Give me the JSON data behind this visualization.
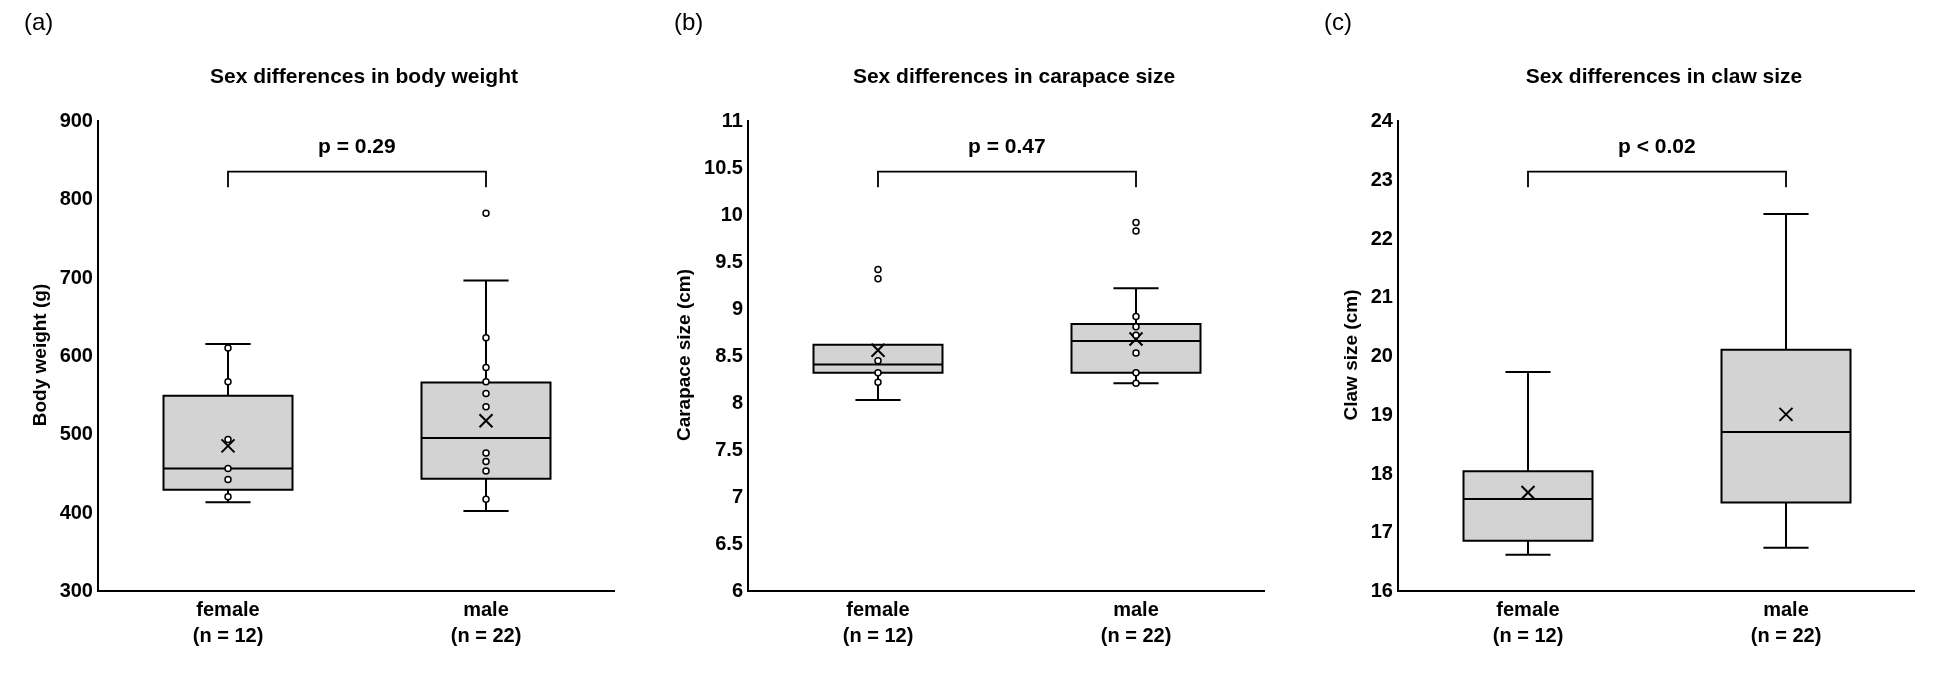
{
  "chart_data": [
    {
      "type": "box",
      "title": "Sex differences in body weight",
      "ylabel": "Body weight (g)",
      "categories": [
        "female\n(n = 12)",
        "male\n(n = 22)"
      ],
      "ylim": [
        300,
        900
      ],
      "yticks": [
        300,
        400,
        500,
        600,
        700,
        800,
        900
      ],
      "grid": false,
      "annotations": [
        "(a)",
        "p = 0.29"
      ],
      "series": [
        {
          "type": "box",
          "color": "#d3d3d3",
          "boxes": [
            {
              "low": 412,
              "q1": 428,
              "median": 455,
              "q3": 548,
              "high": 614,
              "mean": 484
            },
            {
              "low": 401,
              "q1": 442,
              "median": 494,
              "q3": 565,
              "high": 695,
              "mean": 516,
              "outliers": [
                781
              ]
            }
          ]
        },
        {
          "type": "scatter",
          "color": "#000000",
          "marker": "circle",
          "x": [
            "female\n(n = 12)",
            "female\n(n = 12)",
            "female\n(n = 12)",
            "female\n(n = 12)",
            "female\n(n = 12)",
            "female\n(n = 12)",
            "male\n(n = 22)",
            "male\n(n = 22)",
            "male\n(n = 22)",
            "male\n(n = 22)",
            "male\n(n = 22)",
            "male\n(n = 22)",
            "male\n(n = 22)",
            "male\n(n = 22)",
            "male\n(n = 22)"
          ],
          "values": [
            609,
            566,
            492,
            455,
            441,
            419,
            622,
            584,
            566,
            551,
            534,
            475,
            464,
            452,
            416
          ]
        }
      ]
    },
    {
      "type": "box",
      "title": "Sex differences in carapace size",
      "ylabel": "Carapace size (cm)",
      "categories": [
        "female\n(n = 12)",
        "male\n(n = 22)"
      ],
      "ylim": [
        6,
        11
      ],
      "yticks": [
        6,
        6.5,
        7,
        7.5,
        8,
        8.5,
        9,
        9.5,
        10,
        10.5,
        11
      ],
      "grid": false,
      "annotations": [
        "(b)",
        "p = 0.47"
      ],
      "series": [
        {
          "type": "box",
          "color": "#d3d3d3",
          "boxes": [
            {
              "low": 8.02,
              "q1": 8.31,
              "median": 8.4,
              "q3": 8.61,
              "high": 8.61,
              "mean": 8.55,
              "outliers": [
                9.31,
                9.41
              ]
            },
            {
              "low": 8.2,
              "q1": 8.31,
              "median": 8.65,
              "q3": 8.83,
              "high": 9.21,
              "mean": 8.67,
              "outliers": [
                9.82,
                9.91
              ]
            }
          ]
        },
        {
          "type": "scatter",
          "color": "#000000",
          "marker": "circle",
          "x": [
            "female\n(n = 12)",
            "female\n(n = 12)",
            "female\n(n = 12)",
            "male\n(n = 22)",
            "male\n(n = 22)",
            "male\n(n = 22)",
            "male\n(n = 22)",
            "male\n(n = 22)",
            "male\n(n = 22)"
          ],
          "values": [
            8.44,
            8.31,
            8.21,
            8.91,
            8.8,
            8.71,
            8.52,
            8.31,
            8.2
          ]
        }
      ]
    },
    {
      "type": "box",
      "title": "Sex differences in claw size",
      "ylabel": "Claw size (cm)",
      "categories": [
        "female\n(n = 12)",
        "male\n(n = 22)"
      ],
      "ylim": [
        16,
        24
      ],
      "yticks": [
        16,
        17,
        18,
        19,
        20,
        21,
        22,
        23,
        24
      ],
      "grid": false,
      "annotations": [
        "(c)",
        "p < 0.02"
      ],
      "series": [
        {
          "type": "box",
          "color": "#d3d3d3",
          "boxes": [
            {
              "low": 16.6,
              "q1": 16.84,
              "median": 17.55,
              "q3": 18.02,
              "high": 19.71,
              "mean": 17.66
            },
            {
              "low": 16.72,
              "q1": 17.49,
              "median": 18.69,
              "q3": 20.09,
              "high": 22.4,
              "mean": 18.99
            }
          ]
        }
      ]
    }
  ]
}
